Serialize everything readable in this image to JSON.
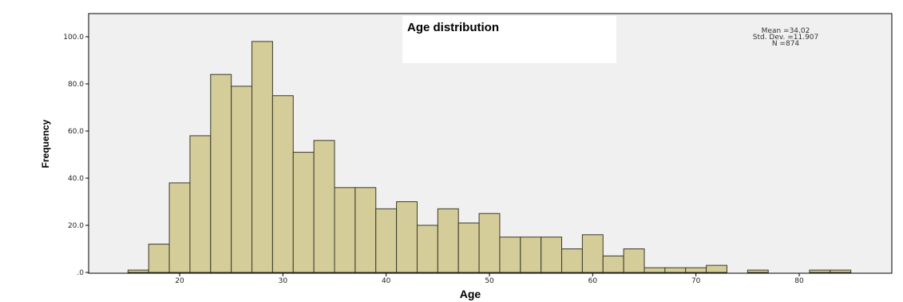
{
  "chart_data": {
    "type": "bar",
    "title": "Age distribution",
    "xlabel": "Age",
    "ylabel": "Frequency",
    "xlim": [
      10,
      87
    ],
    "ylim": [
      0,
      105
    ],
    "x_ticks": [
      20,
      30,
      40,
      50,
      60,
      70,
      80
    ],
    "x_tick_labels": [
      "20",
      "30",
      "40",
      "50",
      "60",
      "70",
      "80"
    ],
    "y_ticks": [
      0,
      20,
      40,
      60,
      80,
      100
    ],
    "y_tick_labels": [
      ".0",
      "20.0",
      "40.0",
      "60.0",
      "80.0",
      "100.0"
    ],
    "grid": false,
    "bin_width": 2,
    "bins_start": [
      15,
      17,
      19,
      21,
      23,
      25,
      27,
      29,
      31,
      33,
      35,
      37,
      39,
      41,
      43,
      45,
      47,
      49,
      51,
      53,
      55,
      57,
      59,
      61,
      63,
      65,
      67,
      69,
      71,
      73,
      75,
      77,
      79,
      81,
      83
    ],
    "values": [
      1,
      12,
      38,
      58,
      84,
      79,
      98,
      75,
      51,
      56,
      36,
      36,
      27,
      30,
      20,
      27,
      21,
      25,
      15,
      15,
      15,
      10,
      16,
      7,
      10,
      2,
      2,
      2,
      3,
      0,
      1,
      0,
      0,
      1,
      1
    ],
    "stats": {
      "mean": "Mean =34.02",
      "std_dev": "Std. Dev. =11.907",
      "n": "N =874"
    },
    "colors": {
      "bar_fill": "#d4cc99",
      "bar_stroke": "#3a3a2a",
      "plot_background": "#f0f0f0",
      "frame": "#000000"
    }
  }
}
